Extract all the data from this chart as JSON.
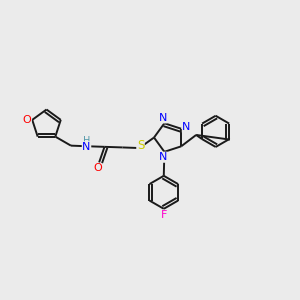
{
  "background_color": "#ebebeb",
  "bond_color": "#1a1a1a",
  "atom_colors": {
    "O": "#ff0000",
    "N": "#0000ff",
    "S": "#cccc00",
    "F": "#ff00cc",
    "H_label": "#5599aa",
    "C": "#1a1a1a"
  },
  "font_size": 7.5,
  "lw": 1.4,
  "figsize": [
    3.0,
    3.0
  ],
  "dpi": 100,
  "xlim": [
    0,
    10
  ],
  "ylim": [
    0,
    10
  ]
}
